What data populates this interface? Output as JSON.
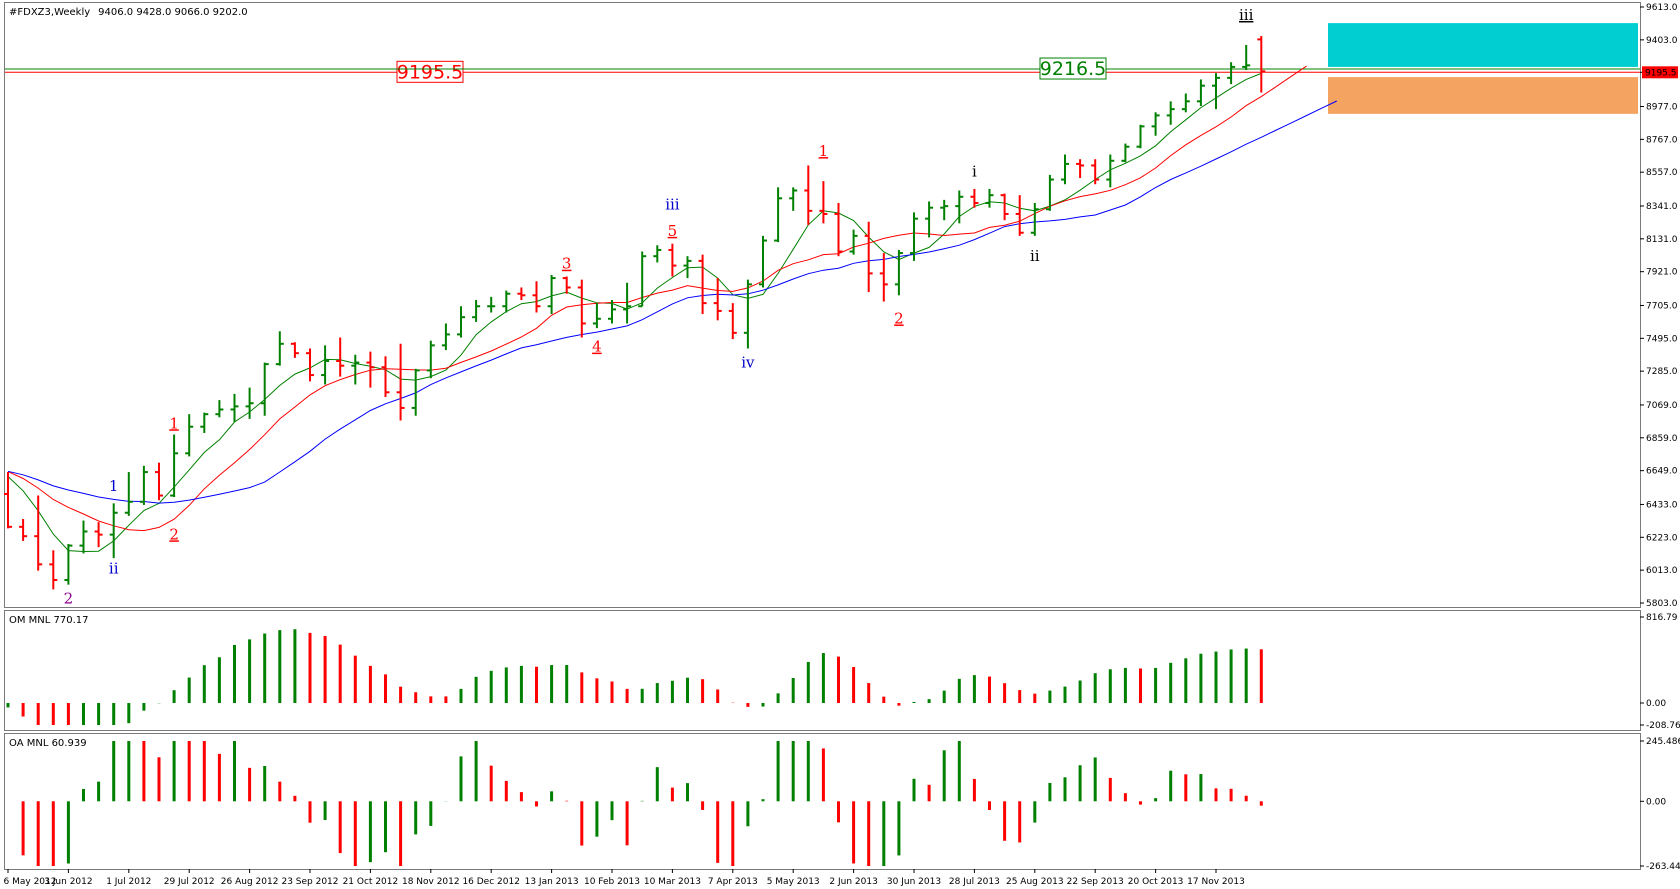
{
  "header": {
    "symbol": "#FDXZ3,Weekly",
    "ohlc": "9406.0 9428.0 9066.0 9202.0"
  },
  "colors": {
    "bull": "#008000",
    "bear": "#ff0000",
    "ma_fast": "#008000",
    "ma_mid": "#ff0000",
    "ma_slow": "#0000ff",
    "cyan_zone": "#00ced1",
    "orange_zone": "#f4a460",
    "wave_red": "#ff0000",
    "wave_blue": "#0000cc",
    "wave_black": "#000000",
    "wave_purple": "#8b008b"
  },
  "chart_data": [
    {
      "type": "ohlc",
      "panel": "price",
      "ylim": [
        5803,
        9613
      ],
      "y_ticks": [
        "9613.0",
        "9403.0",
        "9195.5",
        "8977.0",
        "8767.0",
        "8557.0",
        "8341.0",
        "8131.0",
        "7921.0",
        "7705.0",
        "7495.0",
        "7285.0",
        "7069.0",
        "6859.0",
        "6649.0",
        "6433.0",
        "6223.0",
        "6013.0",
        "5803.0"
      ],
      "current_price_label": "9195.5",
      "horizontal_lines": [
        {
          "label": "9195.5",
          "value": 9195.5,
          "color": "#ff0000"
        },
        {
          "label": "9216.5",
          "value": 9216.5,
          "color": "#008000"
        }
      ],
      "zones": [
        {
          "name": "cyan-zone",
          "from": 9230,
          "to": 9510,
          "color": "#00ced1"
        },
        {
          "name": "orange-zone",
          "from": 8930,
          "to": 9165,
          "color": "#f4a460"
        }
      ],
      "bars": [
        [
          6500,
          6640,
          6280,
          6290
        ],
        [
          6290,
          6340,
          6200,
          6230
        ],
        [
          6230,
          6490,
          6010,
          6050
        ],
        [
          6050,
          6140,
          5890,
          5950
        ],
        [
          5950,
          6180,
          5920,
          6170
        ],
        [
          6170,
          6330,
          6120,
          6260
        ],
        [
          6260,
          6320,
          6160,
          6240
        ],
        [
          6240,
          6440,
          6090,
          6380
        ],
        [
          6380,
          6640,
          6360,
          6450
        ],
        [
          6450,
          6680,
          6430,
          6640
        ],
        [
          6640,
          6700,
          6460,
          6490
        ],
        [
          6490,
          6880,
          6480,
          6760
        ],
        [
          6760,
          7010,
          6740,
          6930
        ],
        [
          6930,
          7020,
          6890,
          7010
        ],
        [
          7010,
          7100,
          6990,
          7040
        ],
        [
          7040,
          7140,
          6960,
          7060
        ],
        [
          7060,
          7180,
          6980,
          7080
        ],
        [
          7080,
          7340,
          7000,
          7330
        ],
        [
          7330,
          7540,
          7320,
          7460
        ],
        [
          7460,
          7470,
          7370,
          7400
        ],
        [
          7400,
          7430,
          7220,
          7260
        ],
        [
          7260,
          7450,
          7200,
          7350
        ],
        [
          7350,
          7500,
          7250,
          7320
        ],
        [
          7320,
          7390,
          7200,
          7340
        ],
        [
          7340,
          7410,
          7180,
          7310
        ],
        [
          7310,
          7380,
          7120,
          7150
        ],
        [
          7150,
          7460,
          6970,
          7050
        ],
        [
          7050,
          7300,
          7000,
          7290
        ],
        [
          7290,
          7480,
          7240,
          7450
        ],
        [
          7450,
          7590,
          7420,
          7520
        ],
        [
          7520,
          7700,
          7500,
          7630
        ],
        [
          7630,
          7740,
          7600,
          7700
        ],
        [
          7700,
          7760,
          7660,
          7700
        ],
        [
          7700,
          7800,
          7660,
          7780
        ],
        [
          7780,
          7820,
          7740,
          7770
        ],
        [
          7770,
          7860,
          7660,
          7700
        ],
        [
          7700,
          7900,
          7650,
          7880
        ],
        [
          7880,
          7890,
          7780,
          7820
        ],
        [
          7820,
          7870,
          7500,
          7590
        ],
        [
          7590,
          7720,
          7560,
          7620
        ],
        [
          7620,
          7740,
          7590,
          7680
        ],
        [
          7680,
          7850,
          7590,
          7700
        ],
        [
          7700,
          8050,
          7700,
          8020
        ],
        [
          8020,
          8090,
          7980,
          8060
        ],
        [
          8060,
          8100,
          7890,
          7960
        ],
        [
          7960,
          8020,
          7880,
          7990
        ],
        [
          7990,
          8030,
          7650,
          7720
        ],
        [
          7720,
          7880,
          7610,
          7670
        ],
        [
          7670,
          7720,
          7490,
          7530
        ],
        [
          7530,
          7870,
          7430,
          7840
        ],
        [
          7840,
          8150,
          7820,
          8120
        ],
        [
          8120,
          8460,
          8110,
          8390
        ],
        [
          8390,
          8460,
          8310,
          8440
        ],
        [
          8440,
          8600,
          8220,
          8310
        ],
        [
          8310,
          8500,
          8230,
          8290
        ],
        [
          8290,
          8360,
          8020,
          8050
        ],
        [
          8050,
          8190,
          8030,
          8150
        ],
        [
          8150,
          8240,
          7790,
          7910
        ],
        [
          7910,
          8040,
          7730,
          7840
        ],
        [
          7840,
          8060,
          7770,
          8040
        ],
        [
          8040,
          8300,
          7990,
          8260
        ],
        [
          8260,
          8370,
          8140,
          8330
        ],
        [
          8330,
          8380,
          8250,
          8340
        ],
        [
          8340,
          8440,
          8230,
          8400
        ],
        [
          8400,
          8450,
          8330,
          8360
        ],
        [
          8360,
          8450,
          8330,
          8410
        ],
        [
          8410,
          8420,
          8250,
          8290
        ],
        [
          8290,
          8410,
          8150,
          8170
        ],
        [
          8170,
          8360,
          8150,
          8320
        ],
        [
          8320,
          8540,
          8310,
          8510
        ],
        [
          8510,
          8670,
          8480,
          8610
        ],
        [
          8610,
          8640,
          8520,
          8600
        ],
        [
          8600,
          8640,
          8480,
          8510
        ],
        [
          8510,
          8670,
          8460,
          8630
        ],
        [
          8630,
          8740,
          8620,
          8720
        ],
        [
          8720,
          8860,
          8710,
          8850
        ],
        [
          8850,
          8940,
          8790,
          8920
        ],
        [
          8920,
          9010,
          8860,
          8960
        ],
        [
          8960,
          9060,
          8940,
          9010
        ],
        [
          9010,
          9150,
          8980,
          9110
        ],
        [
          9110,
          9190,
          8960,
          9160
        ],
        [
          9160,
          9260,
          9120,
          9230
        ],
        [
          9230,
          9370,
          9210,
          9240
        ],
        [
          9406,
          9428,
          9066,
          9202
        ]
      ]
    },
    {
      "type": "bar",
      "panel": "OM",
      "title": "OM MNL 770.17",
      "ylim": [
        -208.76,
        816.79
      ],
      "y_ticks": [
        "816.79",
        "0.00",
        "-208.76"
      ]
    },
    {
      "type": "bar",
      "panel": "OA",
      "title": "OA MNL 60.939",
      "ylim": [
        -263.448,
        245.486
      ],
      "y_ticks": [
        "245.486",
        "0.00",
        "-263.448"
      ],
      "x_ticks": [
        "6 May 2012",
        "3 Jun 2012",
        "1 Jul 2012",
        "29 Jul 2012",
        "26 Aug 2012",
        "23 Sep 2012",
        "21 Oct 2012",
        "18 Nov 2012",
        "16 Dec 2012",
        "13 Jan 2013",
        "10 Feb 2013",
        "10 Mar 2013",
        "7 Apr 2013",
        "5 May 2013",
        "2 Jun 2013",
        "30 Jun 2013",
        "28 Jul 2013",
        "25 Aug 2013",
        "22 Sep 2013",
        "20 Oct 2013",
        "17 Nov 2013"
      ]
    }
  ],
  "wave_labels": [
    {
      "text": "2",
      "bar": 4,
      "price": 5800,
      "color": "purple",
      "u": false
    },
    {
      "text": "1",
      "bar": 7,
      "price": 6520,
      "color": "blue",
      "u": false
    },
    {
      "text": "ii",
      "bar": 7,
      "price": 5990,
      "color": "blue",
      "u": false
    },
    {
      "text": "1",
      "bar": 11,
      "price": 6920,
      "color": "red",
      "u": true
    },
    {
      "text": "2",
      "bar": 11,
      "price": 6210,
      "color": "red",
      "u": true
    },
    {
      "text": "3",
      "bar": 37,
      "price": 7940,
      "color": "red",
      "u": true
    },
    {
      "text": "4",
      "bar": 39,
      "price": 7410,
      "color": "red",
      "u": true
    },
    {
      "text": "5",
      "bar": 44,
      "price": 8150,
      "color": "red",
      "u": true
    },
    {
      "text": "iii",
      "bar": 44,
      "price": 8320,
      "color": "blue",
      "u": false
    },
    {
      "text": "iv",
      "bar": 49,
      "price": 7310,
      "color": "blue",
      "u": false
    },
    {
      "text": "1",
      "bar": 54,
      "price": 8660,
      "color": "red",
      "u": true
    },
    {
      "text": "2",
      "bar": 59,
      "price": 7590,
      "color": "red",
      "u": true
    },
    {
      "text": "i",
      "bar": 64,
      "price": 8530,
      "color": "black",
      "u": false
    },
    {
      "text": "ii",
      "bar": 68,
      "price": 7990,
      "color": "black",
      "u": false
    },
    {
      "text": "iii",
      "bar": 82,
      "price": 9530,
      "color": "black",
      "u": true
    }
  ]
}
